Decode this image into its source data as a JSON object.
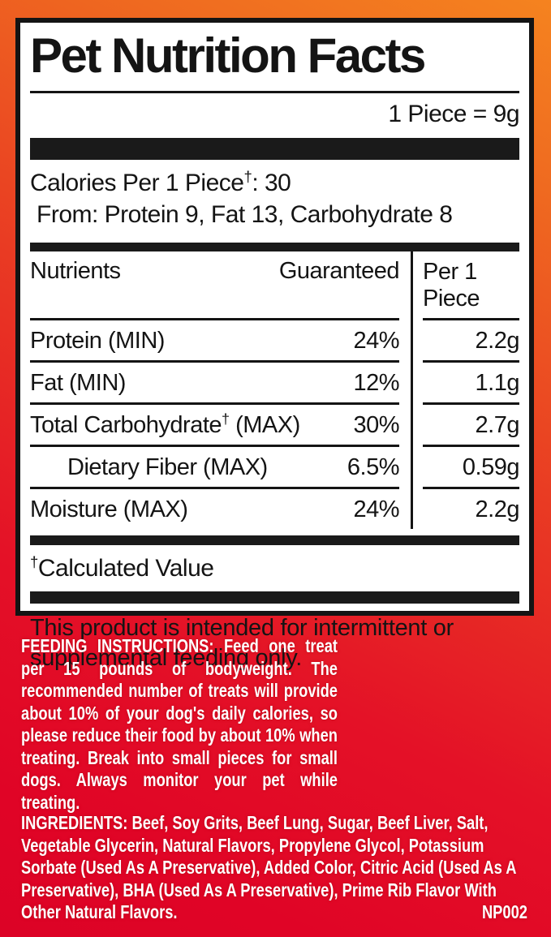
{
  "label": {
    "title": "Pet Nutrition Facts",
    "serving": "1 Piece = 9g",
    "calories": {
      "label": "Calories Per 1 Piece",
      "dagger": "†",
      "value": ": 30",
      "from": "From: Protein 9, Fat 13, Carbohydrate 8"
    },
    "table": {
      "headers": {
        "nutrients": "Nutrients",
        "guaranteed": "Guaranteed",
        "per_piece": "Per 1 Piece"
      },
      "rows": [
        {
          "name": "Protein (MIN)",
          "dagger": "",
          "name_suffix": "",
          "guaranteed": "24%",
          "per_piece": "2.2g"
        },
        {
          "name": "Fat (MIN)",
          "dagger": "",
          "name_suffix": "",
          "guaranteed": "12%",
          "per_piece": "1.1g"
        },
        {
          "name": "Total Carbohydrate",
          "dagger": "†",
          "name_suffix": " (MAX)",
          "guaranteed": "30%",
          "per_piece": "2.7g"
        },
        {
          "name": "Dietary Fiber (MAX)",
          "dagger": "",
          "name_suffix": "",
          "guaranteed": "6.5%",
          "per_piece": "0.59g"
        },
        {
          "name": "Moisture (MAX)",
          "dagger": "",
          "name_suffix": "",
          "guaranteed": "24%",
          "per_piece": "2.2g"
        }
      ]
    },
    "footnote": {
      "dagger": "†",
      "text": "Calculated Value"
    },
    "statement": "This product is intended for intermittent or supplemental feeding only."
  },
  "red_section": {
    "feeding": {
      "label": "FEEDING INSTRUCTIONS:",
      "text": "Feed one treat per 15 pounds of bodyweight. The recommended number of treats will provide about 10% of your dog's daily calories, so please reduce their food by about 10% when treating. Break into small pieces for small dogs. Always monitor your pet while treating."
    },
    "ingredients": {
      "label": "INGREDIENTS:",
      "text": "Beef, Soy Grits, Beef Lung, Sugar, Beef Liver, Salt, Vegetable Glycerin, Natural Flavors, Propylene Glycol, Potassium Sorbate (Used As A Preservative), Added Color, Citric Acid (Used As A Preservative), BHA (Used As A Preservative), Prime Rib Flavor With Other Natural Flavors."
    },
    "code": "NP002"
  },
  "colors": {
    "orange": "#F5831F",
    "red": "#E00426",
    "panel_background": "#FFFFFF",
    "ink": "#141414",
    "red_text": "#FFFFFF"
  }
}
